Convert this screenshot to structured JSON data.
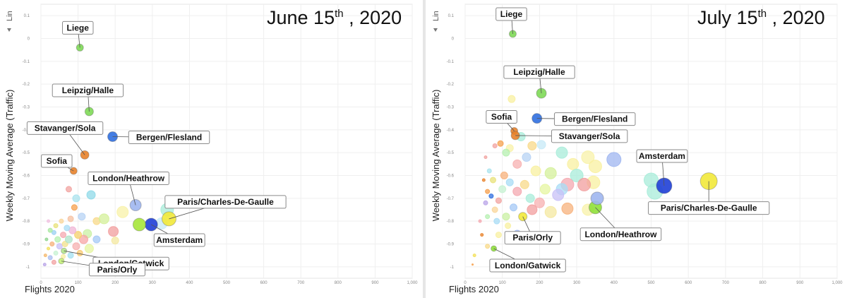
{
  "panels": [
    {
      "id": "left",
      "title_main": "June 15",
      "title_sup": "th",
      "title_rest": " , 2020",
      "lin_label": "Lin",
      "xlabel": "Flights 2020",
      "ylabel": "Weekly Moving Average (Traffic)",
      "xlim": [
        0,
        1000
      ],
      "ylim": [
        -1.05,
        0.15
      ],
      "xticks": [
        0,
        100,
        200,
        300,
        400,
        500,
        600,
        700,
        800,
        900,
        1000
      ],
      "xtick_labels": [
        "0",
        "100",
        "200",
        "300",
        "400",
        "500",
        "600",
        "700",
        "800",
        "900",
        "1,000"
      ],
      "yticks": [
        0.1,
        0,
        -0.1,
        -0.2,
        -0.3,
        -0.4,
        -0.5,
        -0.6,
        -0.7,
        -0.8,
        -0.9,
        -1
      ],
      "ytick_labels": [
        "0.1",
        "0",
        "-0.1",
        "-0.2",
        "-0.3",
        "-0.4",
        "-0.5",
        "-0.6",
        "-0.7",
        "-0.8",
        "-0.9",
        "-1"
      ]
    },
    {
      "id": "right",
      "title_main": "July 15",
      "title_sup": "th",
      "title_rest": " , 2020",
      "lin_label": "Lin",
      "xlabel": "Flights 2020",
      "ylabel": "Weekly Moving Average (Traffic)",
      "xlim": [
        0,
        1000
      ],
      "ylim": [
        -1.05,
        0.15
      ],
      "xticks": [
        0,
        100,
        200,
        300,
        400,
        500,
        600,
        700,
        800,
        900,
        1000
      ],
      "xtick_labels": [
        "0",
        "100",
        "200",
        "300",
        "400",
        "500",
        "600",
        "700",
        "800",
        "900",
        "1,000"
      ],
      "yticks": [
        0.1,
        0,
        -0.1,
        -0.2,
        -0.3,
        -0.4,
        -0.5,
        -0.6,
        -0.7,
        -0.8,
        -0.9,
        -1
      ],
      "ytick_labels": [
        "0.1",
        "0",
        "-0.1",
        "-0.2",
        "-0.3",
        "-0.4",
        "-0.5",
        "-0.6",
        "-0.7",
        "-0.8",
        "-0.9",
        "-1"
      ]
    }
  ],
  "chart_data": [
    {
      "type": "scatter",
      "title": "June 15th , 2020",
      "xlabel": "Flights 2020",
      "ylabel": "Weekly Moving Average (Traffic)",
      "xlim": [
        0,
        1000
      ],
      "ylim": [
        -1.05,
        0.15
      ],
      "grid": true,
      "labeled_points": [
        {
          "name": "Liege",
          "x": 105,
          "y": -0.04,
          "size": 5,
          "color": "#7ed957",
          "lx": -3,
          "ly": -28
        },
        {
          "name": "Leipzig/Halle",
          "x": 130,
          "y": -0.32,
          "size": 6,
          "color": "#7ed957",
          "lx": -2,
          "ly": -30
        },
        {
          "name": "Stavanger/Sola",
          "x": 118,
          "y": -0.51,
          "size": 6,
          "color": "#e8822a",
          "lx": -28,
          "ly": -38
        },
        {
          "name": "Bergen/Flesland",
          "x": 193,
          "y": -0.43,
          "size": 7,
          "color": "#2f6fe0",
          "lx": 80,
          "ly": 1
        },
        {
          "name": "Sofia",
          "x": 88,
          "y": -0.58,
          "size": 5,
          "color": "#e8822a",
          "lx": -24,
          "ly": -14
        },
        {
          "name": "London/Heathrow",
          "x": 255,
          "y": -0.73,
          "size": 8,
          "color": "#9fb6f0",
          "lx": -10,
          "ly": -38
        },
        {
          "name": "Paris/Charles-De-Gaulle",
          "x": 345,
          "y": -0.79,
          "size": 10,
          "color": "#f2e93a",
          "lx": 80,
          "ly": -24
        },
        {
          "name": "Amsterdam",
          "x": 297,
          "y": -0.815,
          "size": 9,
          "color": "#1f3fd6",
          "lx": 40,
          "ly": 22
        },
        {
          "name": "London/Gatwick",
          "x": 62,
          "y": -0.93,
          "size": 4,
          "color": "#b2e88a",
          "lx": 95,
          "ly": 18
        },
        {
          "name": "Paris/Orly",
          "x": 55,
          "y": -0.975,
          "size": 4,
          "color": "#c5f27a",
          "lx": 79,
          "ly": 12
        },
        {
          "name": "",
          "x": 265,
          "y": -0.815,
          "size": 9,
          "color": "#a6e63a"
        }
      ],
      "background_points": [
        {
          "x": 75,
          "y": -0.66,
          "r": 4,
          "c": "#f1a3a0"
        },
        {
          "x": 95,
          "y": -0.7,
          "r": 5,
          "c": "#a9e3ee"
        },
        {
          "x": 135,
          "y": -0.685,
          "r": 6,
          "c": "#8fd9e8"
        },
        {
          "x": 90,
          "y": -0.74,
          "r": 4,
          "c": "#f6a04d"
        },
        {
          "x": 110,
          "y": -0.78,
          "r": 5,
          "c": "#b7d3f4"
        },
        {
          "x": 80,
          "y": -0.79,
          "r": 4,
          "c": "#f5c0a0"
        },
        {
          "x": 150,
          "y": -0.8,
          "r": 5,
          "c": "#f8d98a"
        },
        {
          "x": 170,
          "y": -0.79,
          "r": 7,
          "c": "#d4f09a"
        },
        {
          "x": 220,
          "y": -0.76,
          "r": 8,
          "c": "#f8f2a8"
        },
        {
          "x": 340,
          "y": -0.75,
          "r": 9,
          "c": "#a8ecd9"
        },
        {
          "x": 325,
          "y": -0.81,
          "r": 8,
          "c": "#c7eaf7"
        },
        {
          "x": 195,
          "y": -0.845,
          "r": 7,
          "c": "#f29e9e"
        },
        {
          "x": 125,
          "y": -0.855,
          "r": 6,
          "c": "#c9f0a3"
        },
        {
          "x": 115,
          "y": -0.88,
          "r": 6,
          "c": "#f7a5a5"
        },
        {
          "x": 100,
          "y": -0.86,
          "r": 5,
          "c": "#f5d06b"
        },
        {
          "x": 85,
          "y": -0.84,
          "r": 5,
          "c": "#f0b5d6"
        },
        {
          "x": 70,
          "y": -0.83,
          "r": 4,
          "c": "#a8dcf5"
        },
        {
          "x": 60,
          "y": -0.86,
          "r": 4,
          "c": "#f4a8b0"
        },
        {
          "x": 55,
          "y": -0.8,
          "r": 3,
          "c": "#f9d69a"
        },
        {
          "x": 40,
          "y": -0.82,
          "r": 3,
          "c": "#e8e27a"
        },
        {
          "x": 45,
          "y": -0.88,
          "r": 4,
          "c": "#b5f0b0"
        },
        {
          "x": 35,
          "y": -0.85,
          "r": 3,
          "c": "#9ad0f2"
        },
        {
          "x": 30,
          "y": -0.9,
          "r": 3,
          "c": "#f7b27c"
        },
        {
          "x": 50,
          "y": -0.91,
          "r": 4,
          "c": "#c8c0f7"
        },
        {
          "x": 65,
          "y": -0.9,
          "r": 4,
          "c": "#f3e28c"
        },
        {
          "x": 75,
          "y": -0.88,
          "r": 5,
          "c": "#aee3c8"
        },
        {
          "x": 95,
          "y": -0.91,
          "r": 5,
          "c": "#f7b0b0"
        },
        {
          "x": 130,
          "y": -0.92,
          "r": 6,
          "c": "#e6f5a0"
        },
        {
          "x": 150,
          "y": -0.88,
          "r": 5,
          "c": "#a4c8f5"
        },
        {
          "x": 105,
          "y": -0.94,
          "r": 4,
          "c": "#f9c96e"
        },
        {
          "x": 40,
          "y": -0.94,
          "r": 3,
          "c": "#c6f2d1"
        },
        {
          "x": 25,
          "y": -0.96,
          "r": 3,
          "c": "#a9bdf0"
        },
        {
          "x": 35,
          "y": -0.98,
          "r": 3,
          "c": "#f2a2a2"
        },
        {
          "x": 20,
          "y": -0.92,
          "r": 2,
          "c": "#f3e05a"
        },
        {
          "x": 15,
          "y": -0.88,
          "r": 2,
          "c": "#8ed48e"
        },
        {
          "x": 12,
          "y": -0.95,
          "r": 2,
          "c": "#f4b86b"
        },
        {
          "x": 10,
          "y": -0.99,
          "r": 2,
          "c": "#b9a4e8"
        },
        {
          "x": 60,
          "y": -0.955,
          "r": 3,
          "c": "#f8f0a0"
        },
        {
          "x": 80,
          "y": -0.95,
          "r": 4,
          "c": "#a3e0f2"
        },
        {
          "x": 200,
          "y": -0.885,
          "r": 5,
          "c": "#f4e8a0"
        },
        {
          "x": 20,
          "y": -0.8,
          "r": 2,
          "c": "#f0c0e0"
        },
        {
          "x": 25,
          "y": -0.84,
          "r": 3,
          "c": "#a8e8a0"
        }
      ]
    },
    {
      "type": "scatter",
      "title": "July 15th , 2020",
      "xlabel": "Flights 2020",
      "ylabel": "Weekly Moving Average (Traffic)",
      "xlim": [
        0,
        1000
      ],
      "ylim": [
        -1.05,
        0.15
      ],
      "grid": true,
      "labeled_points": [
        {
          "name": "Liege",
          "x": 128,
          "y": 0.02,
          "size": 5,
          "color": "#7ed957",
          "lx": -2,
          "ly": -28
        },
        {
          "name": "Leipzig/Halle",
          "x": 205,
          "y": -0.24,
          "size": 7,
          "color": "#7ed957",
          "lx": -3,
          "ly": -30
        },
        {
          "name": "Bergen/Flesland",
          "x": 193,
          "y": -0.35,
          "size": 7,
          "color": "#2f6fe0",
          "lx": 82,
          "ly": 1
        },
        {
          "name": "Sofia",
          "x": 132,
          "y": -0.405,
          "size": 5,
          "color": "#e8822a",
          "lx": -18,
          "ly": -20
        },
        {
          "name": "Stavanger/Sola",
          "x": 135,
          "y": -0.425,
          "size": 6,
          "color": "#e8822a",
          "lx": 105,
          "ly": 1
        },
        {
          "name": "Amsterdam",
          "x": 535,
          "y": -0.645,
          "size": 11,
          "color": "#1f3fd6",
          "lx": -3,
          "ly": -42
        },
        {
          "name": "Paris/Charles-De-Gaulle",
          "x": 655,
          "y": -0.625,
          "size": 12,
          "color": "#f2e93a",
          "lx": 0,
          "ly": 38
        },
        {
          "name": "London/Heathrow",
          "x": 350,
          "y": -0.74,
          "size": 9,
          "color": "#8fe03a",
          "lx": 36,
          "ly": 38
        },
        {
          "name": "Paris/Orly",
          "x": 155,
          "y": -0.78,
          "size": 6,
          "color": "#f2e93a",
          "lx": 14,
          "ly": 30
        },
        {
          "name": "London/Gatwick",
          "x": 77,
          "y": -0.92,
          "size": 4,
          "color": "#8fe03a",
          "lx": 48,
          "ly": 24
        },
        {
          "name": "",
          "x": 355,
          "y": -0.7,
          "size": 9,
          "color": "#9fb6f0"
        }
      ],
      "background_points": [
        {
          "x": 125,
          "y": -0.265,
          "r": 5,
          "c": "#f8f0a0"
        },
        {
          "x": 400,
          "y": -0.53,
          "r": 10,
          "c": "#9fb6f0"
        },
        {
          "x": 330,
          "y": -0.52,
          "r": 9,
          "c": "#f8f2a8"
        },
        {
          "x": 260,
          "y": -0.5,
          "r": 8,
          "c": "#a8ecd9"
        },
        {
          "x": 205,
          "y": -0.465,
          "r": 6,
          "c": "#c7eaf7"
        },
        {
          "x": 180,
          "y": -0.47,
          "r": 6,
          "c": "#f8d98a"
        },
        {
          "x": 165,
          "y": -0.52,
          "r": 6,
          "c": "#b7d3f4"
        },
        {
          "x": 150,
          "y": -0.43,
          "r": 6,
          "c": "#a8ecd9"
        },
        {
          "x": 120,
          "y": -0.48,
          "r": 5,
          "c": "#f8f2a8"
        },
        {
          "x": 110,
          "y": -0.5,
          "r": 5,
          "c": "#b5f0b0"
        },
        {
          "x": 95,
          "y": -0.46,
          "r": 4,
          "c": "#f6a04d"
        },
        {
          "x": 80,
          "y": -0.47,
          "r": 3,
          "c": "#f1a3a0"
        },
        {
          "x": 140,
          "y": -0.55,
          "r": 6,
          "c": "#f7b0b0"
        },
        {
          "x": 190,
          "y": -0.58,
          "r": 7,
          "c": "#f8f0a0"
        },
        {
          "x": 230,
          "y": -0.59,
          "r": 8,
          "c": "#d4f09a"
        },
        {
          "x": 290,
          "y": -0.55,
          "r": 8,
          "c": "#f8f0a0"
        },
        {
          "x": 300,
          "y": -0.6,
          "r": 9,
          "c": "#a8ecd9"
        },
        {
          "x": 350,
          "y": -0.56,
          "r": 9,
          "c": "#f8f0a0"
        },
        {
          "x": 345,
          "y": -0.63,
          "r": 9,
          "c": "#f8f0a0"
        },
        {
          "x": 320,
          "y": -0.64,
          "r": 9,
          "c": "#f29e9e"
        },
        {
          "x": 275,
          "y": -0.64,
          "r": 9,
          "c": "#f4a8b0"
        },
        {
          "x": 260,
          "y": -0.66,
          "r": 8,
          "c": "#a8dcf5"
        },
        {
          "x": 250,
          "y": -0.685,
          "r": 8,
          "c": "#c8c0f7"
        },
        {
          "x": 215,
          "y": -0.66,
          "r": 7,
          "c": "#e6f5a0"
        },
        {
          "x": 200,
          "y": -0.72,
          "r": 7,
          "c": "#f7b0b0"
        },
        {
          "x": 175,
          "y": -0.7,
          "r": 6,
          "c": "#a8ecd9"
        },
        {
          "x": 160,
          "y": -0.64,
          "r": 6,
          "c": "#f8d98a"
        },
        {
          "x": 140,
          "y": -0.67,
          "r": 6,
          "c": "#f4a8b0"
        },
        {
          "x": 120,
          "y": -0.63,
          "r": 5,
          "c": "#a8dcf5"
        },
        {
          "x": 105,
          "y": -0.6,
          "r": 5,
          "c": "#f7b27c"
        },
        {
          "x": 100,
          "y": -0.66,
          "r": 5,
          "c": "#c6f2d1"
        },
        {
          "x": 90,
          "y": -0.71,
          "r": 4,
          "c": "#f1a3a0"
        },
        {
          "x": 75,
          "y": -0.62,
          "r": 4,
          "c": "#e8e27a"
        },
        {
          "x": 65,
          "y": -0.58,
          "r": 3,
          "c": "#a9e3ee"
        },
        {
          "x": 60,
          "y": -0.67,
          "r": 3,
          "c": "#f6a04d"
        },
        {
          "x": 55,
          "y": -0.72,
          "r": 3,
          "c": "#b9a4e8"
        },
        {
          "x": 80,
          "y": -0.75,
          "r": 4,
          "c": "#f9d69a"
        },
        {
          "x": 110,
          "y": -0.78,
          "r": 5,
          "c": "#c9f0a3"
        },
        {
          "x": 130,
          "y": -0.74,
          "r": 5,
          "c": "#a4c8f5"
        },
        {
          "x": 180,
          "y": -0.75,
          "r": 7,
          "c": "#f29e9e"
        },
        {
          "x": 230,
          "y": -0.76,
          "r": 8,
          "c": "#f4e8a0"
        },
        {
          "x": 275,
          "y": -0.745,
          "r": 8,
          "c": "#f7b27c"
        },
        {
          "x": 330,
          "y": -0.75,
          "r": 8,
          "c": "#f8f2a8"
        },
        {
          "x": 500,
          "y": -0.62,
          "r": 10,
          "c": "#a8ecd9"
        },
        {
          "x": 510,
          "y": -0.67,
          "r": 11,
          "c": "#a8ecd9"
        },
        {
          "x": 115,
          "y": -0.82,
          "r": 4,
          "c": "#f8f0a0"
        },
        {
          "x": 85,
          "y": -0.8,
          "r": 4,
          "c": "#a8dcf5"
        },
        {
          "x": 60,
          "y": -0.78,
          "r": 3,
          "c": "#b5f0b0"
        },
        {
          "x": 40,
          "y": -0.8,
          "r": 2,
          "c": "#f4a8b0"
        },
        {
          "x": 45,
          "y": -0.86,
          "r": 2,
          "c": "#e8822a"
        },
        {
          "x": 90,
          "y": -0.86,
          "r": 4,
          "c": "#f8f0a0"
        },
        {
          "x": 140,
          "y": -0.855,
          "r": 5,
          "c": "#9fb6f0"
        },
        {
          "x": 60,
          "y": -0.91,
          "r": 3,
          "c": "#f8d98a"
        },
        {
          "x": 25,
          "y": -0.95,
          "r": 2,
          "c": "#f3e05a"
        },
        {
          "x": 20,
          "y": -0.99,
          "r": 1,
          "c": "#f6a04d"
        },
        {
          "x": 50,
          "y": -0.62,
          "r": 2,
          "c": "#e8822a"
        },
        {
          "x": 70,
          "y": -0.69,
          "r": 3,
          "c": "#2f6fe0"
        },
        {
          "x": 55,
          "y": -0.52,
          "r": 2,
          "c": "#f1a3a0"
        }
      ]
    }
  ]
}
